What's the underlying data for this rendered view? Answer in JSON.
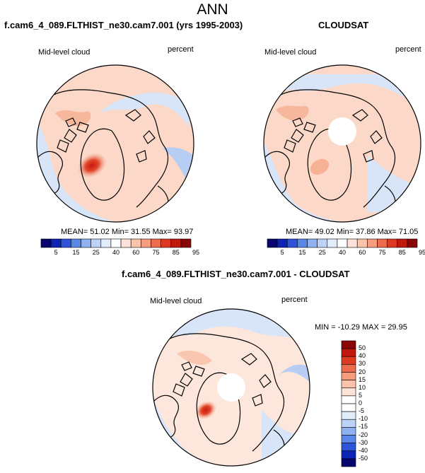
{
  "title": "ANN",
  "panels": [
    {
      "title": "f.cam6_4_089.FLTHIST_ne30.cam7.001 (yrs 1995-2003)",
      "left_label": "Mid-level cloud",
      "right_label": "percent",
      "stats": "MEAN=  51.02  Min=  31.55  Max=  93.97"
    },
    {
      "title": "CLOUDSAT",
      "left_label": "Mid-level cloud",
      "right_label": "percent",
      "stats": "MEAN=  49.02  Min=  37.86  Max=  71.05"
    },
    {
      "title": "f.cam6_4_089.FLTHIST_ne30.cam7.001 - CLOUDSAT",
      "left_label": "Mid-level cloud",
      "right_label": "percent",
      "stats": "MIN = -10.29 MAX =  29.95"
    }
  ],
  "colorbar_abs": {
    "labels": [
      "5",
      "15",
      "25",
      "40",
      "60",
      "75",
      "85",
      "95"
    ],
    "colors": [
      "#06066e",
      "#0b24b4",
      "#2b54db",
      "#5b86ea",
      "#8fb1f2",
      "#bcd2f7",
      "#e1ecfb",
      "#ffffff",
      "#fde3d6",
      "#fbc3aa",
      "#f59c7c",
      "#ec6a4d",
      "#dc3b22",
      "#c0170e",
      "#8a0606"
    ]
  },
  "colorbar_diff": {
    "labels": [
      "50",
      "40",
      "30",
      "20",
      "15",
      "10",
      "5",
      "0",
      "-5",
      "-10",
      "-15",
      "-20",
      "-30",
      "-40",
      "-50"
    ],
    "colors": [
      "#8a0606",
      "#c0170e",
      "#dc3b22",
      "#ec6a4d",
      "#f59c7c",
      "#fbc3aa",
      "#fde3d6",
      "#ffffff",
      "#ffffff",
      "#e1ecfb",
      "#bcd2f7",
      "#8fb1f2",
      "#5b86ea",
      "#2b54db",
      "#0b24b4",
      "#06066e"
    ]
  },
  "colors": {
    "ocean_base_top": "#fbd8c7",
    "ocean_base_diff": "#fde7dc",
    "blue_light": "#d8e5f8",
    "blue_mid": "#b8cdf3",
    "peak": "#d8321c",
    "coast": "#000000"
  }
}
